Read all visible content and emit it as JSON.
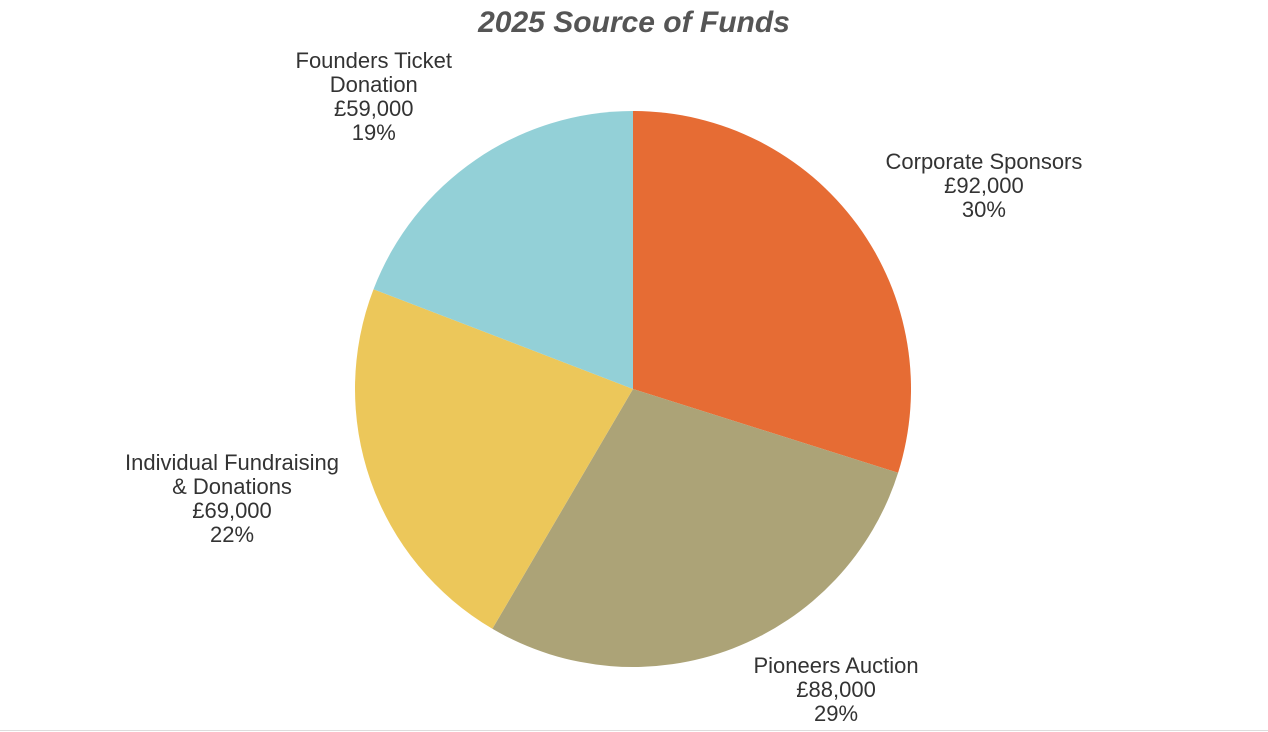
{
  "chart_data": {
    "type": "pie",
    "title": "2025 Source of Funds",
    "slices": [
      {
        "label_lines": [
          "Corporate Sponsors"
        ],
        "value": 92000,
        "value_label": "£92,000",
        "percent_label": "30%",
        "color": "#E66C34"
      },
      {
        "label_lines": [
          "Pioneers Auction"
        ],
        "value": 88000,
        "value_label": "£88,000",
        "percent_label": "29%",
        "color": "#ACA377"
      },
      {
        "label_lines": [
          "Individual Fundraising",
          "& Donations"
        ],
        "value": 69000,
        "value_label": "£69,000",
        "percent_label": "22%",
        "color": "#ECC75A"
      },
      {
        "label_lines": [
          "Founders Ticket",
          "Donation"
        ],
        "value": 59000,
        "value_label": "£59,000",
        "percent_label": "19%",
        "color": "#93D0D7"
      }
    ],
    "start_angle": "12 o'clock",
    "direction": "clockwise",
    "legend": "none",
    "data_labels": "outside"
  }
}
